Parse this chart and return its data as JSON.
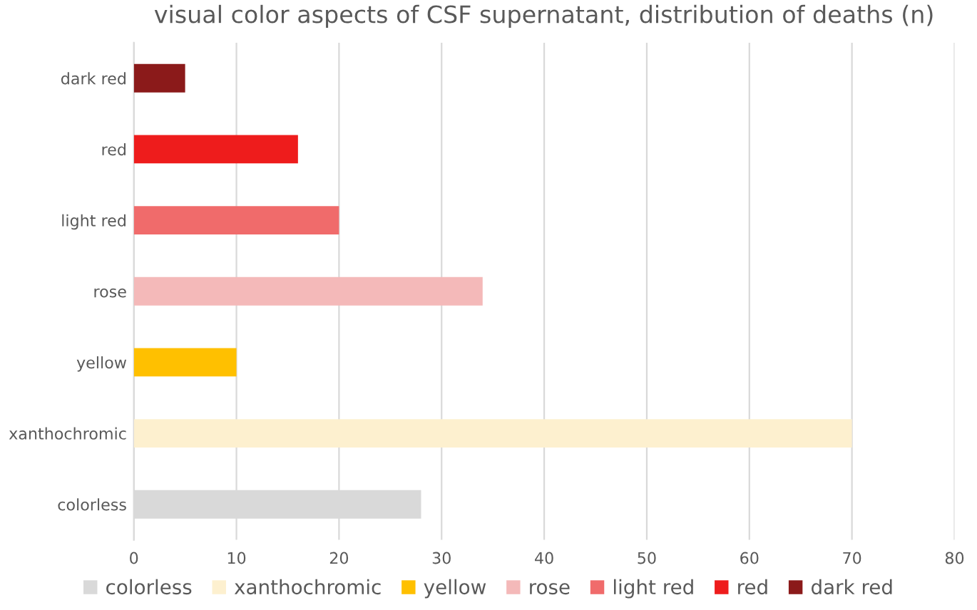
{
  "chart_data": {
    "type": "bar",
    "orientation": "horizontal",
    "stacked": true,
    "title": "visual color aspects of CSF supernatant, distribution of deaths (n)",
    "categories": [
      "dark red",
      "red",
      "light red",
      "rose",
      "yellow",
      "xanthochromic",
      "colorless"
    ],
    "series": [
      {
        "name": "colorless",
        "color": "#d9d9d9",
        "values": [
          null,
          null,
          null,
          null,
          null,
          null,
          28
        ]
      },
      {
        "name": "xanthochromic",
        "color": "#fdf0cf",
        "values": [
          null,
          null,
          null,
          null,
          null,
          70,
          null
        ]
      },
      {
        "name": "yellow",
        "color": "#ffc000",
        "values": [
          null,
          null,
          null,
          null,
          10,
          null,
          null
        ]
      },
      {
        "name": "rose",
        "color": "#f4b9b9",
        "values": [
          null,
          null,
          null,
          34,
          null,
          null,
          null
        ]
      },
      {
        "name": "light red",
        "color": "#f06b6b",
        "values": [
          null,
          null,
          20,
          null,
          null,
          null,
          null
        ]
      },
      {
        "name": "red",
        "color": "#ee1c1c",
        "values": [
          null,
          16,
          null,
          null,
          null,
          null,
          null
        ]
      },
      {
        "name": "dark red",
        "color": "#8b1a1a",
        "values": [
          5,
          null,
          null,
          null,
          null,
          null,
          null
        ]
      }
    ],
    "xlim": [
      0,
      80
    ],
    "xticks": [
      0,
      10,
      20,
      30,
      40,
      50,
      60,
      70,
      80
    ],
    "grid": "x",
    "legend": "bottom"
  }
}
